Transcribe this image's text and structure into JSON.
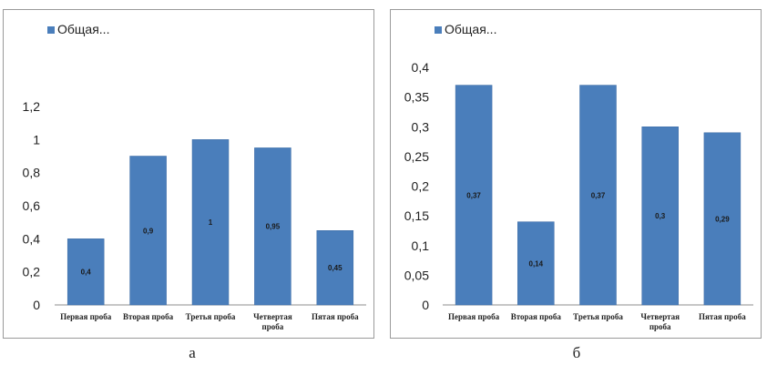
{
  "colors": {
    "bar": "#4a7ebb",
    "bar_edge": "#3b6aa3",
    "axis": "#8c8c8c",
    "text": "#222222"
  },
  "captions": [
    "а",
    "б"
  ],
  "chart_data": [
    {
      "type": "bar",
      "legend": {
        "label": "Общая...",
        "position": "top-left"
      },
      "categories": [
        "Первая проба",
        "Вторая проба",
        "Третья проба",
        "Четвертая проба",
        "Пятая проба"
      ],
      "category_lines": [
        [
          "Первая проба"
        ],
        [
          "Вторая проба"
        ],
        [
          "Третья проба"
        ],
        [
          "Четвертая",
          "проба"
        ],
        [
          "Пятая проба"
        ]
      ],
      "values": [
        0.4,
        0.9,
        1,
        0.95,
        0.45
      ],
      "data_labels": [
        "0,4",
        "0,9",
        "1",
        "0,95",
        "0,45"
      ],
      "ylim": [
        0,
        1.2
      ],
      "yticks": [
        0,
        0.2,
        0.4,
        0.6,
        0.8,
        1,
        1.2
      ],
      "ytick_labels": [
        "0",
        "0,2",
        "0,4",
        "0,6",
        "0,8",
        "1",
        "1,2"
      ],
      "grid": false
    },
    {
      "type": "bar",
      "legend": {
        "label": "Общая...",
        "position": "top-left"
      },
      "categories": [
        "Первая проба",
        "Вторая проба",
        "Третья проба",
        "Четвертая проба",
        "Пятая проба"
      ],
      "category_lines": [
        [
          "Первая проба"
        ],
        [
          "Вторая проба"
        ],
        [
          "Третья проба"
        ],
        [
          "Четвертая",
          "проба"
        ],
        [
          "Пятая проба"
        ]
      ],
      "values": [
        0.37,
        0.14,
        0.37,
        0.3,
        0.29
      ],
      "data_labels": [
        "0,37",
        "0,14",
        "0,37",
        "0,3",
        "0,29"
      ],
      "ylim": [
        0,
        0.4
      ],
      "yticks": [
        0,
        0.05,
        0.1,
        0.15,
        0.2,
        0.25,
        0.3,
        0.35,
        0.4
      ],
      "ytick_labels": [
        "0",
        "0,05",
        "0,1",
        "0,15",
        "0,2",
        "0,25",
        "0,3",
        "0,35",
        "0,4"
      ],
      "grid": false
    }
  ]
}
